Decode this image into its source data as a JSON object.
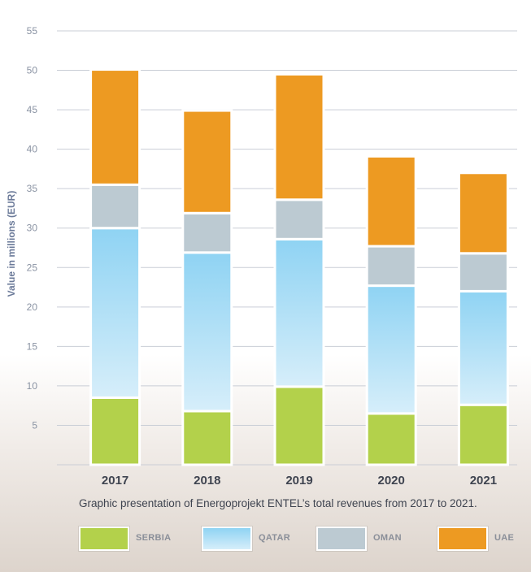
{
  "chart_data": {
    "type": "bar",
    "stacked": true,
    "categories": [
      "2017",
      "2018",
      "2019",
      "2020",
      "2021"
    ],
    "series": [
      {
        "name": "SERBIA",
        "color": "#b3d14b",
        "values": [
          8.5,
          6.8,
          9.9,
          6.5,
          7.6
        ]
      },
      {
        "name": "QATAR",
        "color": "#8fd3f3",
        "values": [
          21.5,
          20.1,
          18.7,
          16.2,
          14.4
        ]
      },
      {
        "name": "OMAN",
        "color": "#bccad2",
        "values": [
          5.5,
          5.0,
          5.0,
          5.0,
          4.8
        ]
      },
      {
        "name": "UAE",
        "color": "#ed9a22",
        "values": [
          14.6,
          13.0,
          15.9,
          11.4,
          10.2
        ]
      }
    ],
    "ylabel": "Value in millions (EUR)",
    "xlabel": "",
    "ylim": [
      0,
      55
    ],
    "yticks": [
      5,
      10,
      15,
      20,
      25,
      30,
      35,
      40,
      45,
      50,
      55
    ],
    "grid": true,
    "legend_position": "bottom"
  },
  "caption": "Graphic presentation of Energoprojekt ENTEL’s total revenues from 2017 to 2021."
}
